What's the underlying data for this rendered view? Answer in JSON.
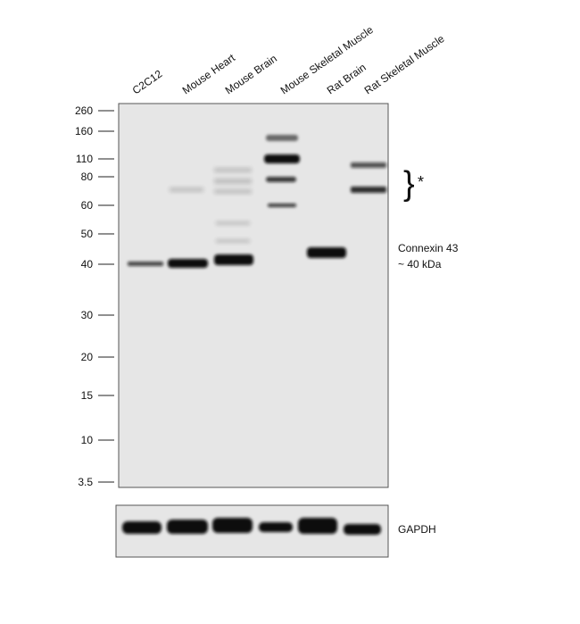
{
  "lanes": [
    "C2C12",
    "Mouse Heart",
    "Mouse Brain",
    "Mouse Skeletal Muscle",
    "Rat Brain",
    "Rat Skeletal Muscle"
  ],
  "markers": [
    "260",
    "160",
    "110",
    "80",
    "60",
    "50",
    "40",
    "30",
    "20",
    "15",
    "10",
    "3.5"
  ],
  "annotations": {
    "target": "Connexin 43",
    "size": "~ 40 kDa",
    "asterisk": "*",
    "loading_control": "GAPDH"
  }
}
